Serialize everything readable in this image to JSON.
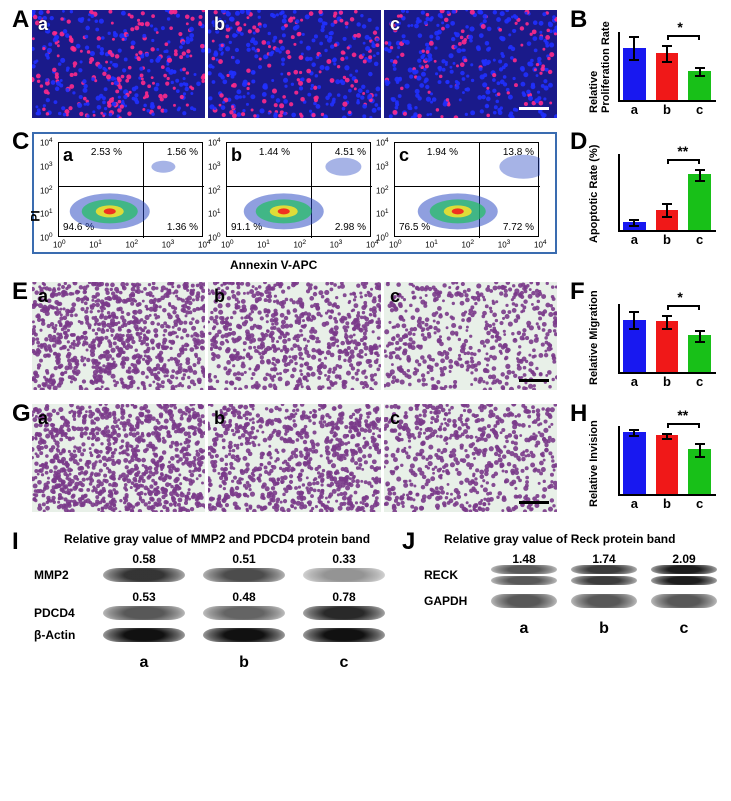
{
  "panels": {
    "A": {
      "label": "A",
      "subs": [
        "a",
        "b",
        "c"
      ]
    },
    "B": {
      "label": "B",
      "chart": {
        "type": "bar",
        "ylabel": "Relative Proliferation Rate",
        "ylim": [
          0,
          1.3
        ],
        "ytick_step": 0.3,
        "categories": [
          "a",
          "b",
          "c"
        ],
        "values": [
          1.0,
          0.9,
          0.55
        ],
        "errors": [
          0.22,
          0.15,
          0.08
        ],
        "bar_colors": [
          "#1818f0",
          "#f01818",
          "#18c018"
        ],
        "sig": {
          "from": 1,
          "to": 2,
          "label": "*"
        }
      }
    },
    "C": {
      "label": "C",
      "xaxis": "Annexin V-APC",
      "yaxis": "PI",
      "plots": [
        {
          "sub": "a",
          "q1": "2.53 %",
          "q2": "1.56 %",
          "q3": "94.6 %",
          "q4": "1.36 %"
        },
        {
          "sub": "b",
          "q1": "1.44 %",
          "q2": "4.51 %",
          "q3": "91.1 %",
          "q4": "2.98 %"
        },
        {
          "sub": "c",
          "q1": "1.94 %",
          "q2": "13.8 %",
          "q3": "76.5 %",
          "q4": "7.72 %"
        }
      ]
    },
    "D": {
      "label": "D",
      "chart": {
        "type": "bar",
        "ylabel": "Apoptotic Rate (%)",
        "ylim": [
          0,
          30
        ],
        "ytick_step": 5,
        "categories": [
          "a",
          "b",
          "c"
        ],
        "values": [
          3,
          8,
          22
        ],
        "errors": [
          1.2,
          2.5,
          2.2
        ],
        "bar_colors": [
          "#1818f0",
          "#f01818",
          "#18c018"
        ],
        "sig": {
          "from": 1,
          "to": 2,
          "label": "**"
        }
      }
    },
    "E": {
      "label": "E",
      "subs": [
        "a",
        "b",
        "c"
      ]
    },
    "F": {
      "label": "F",
      "chart": {
        "type": "bar",
        "ylabel": "Relative Migration",
        "ylim": [
          0,
          1.3
        ],
        "ytick_step": 0.3,
        "categories": [
          "a",
          "b",
          "c"
        ],
        "values": [
          1.0,
          0.97,
          0.7
        ],
        "errors": [
          0.16,
          0.12,
          0.1
        ],
        "bar_colors": [
          "#1818f0",
          "#f01818",
          "#18c018"
        ],
        "sig": {
          "from": 1,
          "to": 2,
          "label": "*"
        }
      }
    },
    "G": {
      "label": "G",
      "subs": [
        "a",
        "b",
        "c"
      ]
    },
    "H": {
      "label": "H",
      "chart": {
        "type": "bar",
        "ylabel": "Relative Invision",
        "ylim": [
          0,
          1.1
        ],
        "ytick_step": 0.2,
        "categories": [
          "a",
          "b",
          "c"
        ],
        "values": [
          1.0,
          0.95,
          0.72
        ],
        "errors": [
          0.05,
          0.04,
          0.1
        ],
        "bar_colors": [
          "#1818f0",
          "#f01818",
          "#18c018"
        ],
        "sig": {
          "from": 1,
          "to": 2,
          "label": "**"
        }
      }
    },
    "I": {
      "label": "I",
      "title": "Relative gray value of MMP2 and PDCD4 protein band",
      "columns": [
        "a",
        "b",
        "c"
      ],
      "rows": [
        {
          "name": "MMP2",
          "values": [
            "0.58",
            "0.51",
            "0.33"
          ],
          "intensities": [
            0.85,
            0.75,
            0.45
          ]
        },
        {
          "name": "PDCD4",
          "values": [
            "0.53",
            "0.48",
            "0.78"
          ],
          "intensities": [
            0.7,
            0.65,
            0.9
          ]
        },
        {
          "name": "β-Actin",
          "values": [
            "",
            "",
            ""
          ],
          "intensities": [
            1,
            1,
            1
          ]
        }
      ]
    },
    "J": {
      "label": "J",
      "title": "Relative gray value of Reck protein band",
      "columns": [
        "a",
        "b",
        "c"
      ],
      "rows": [
        {
          "name": "RECK",
          "values": [
            "1.48",
            "1.74",
            "2.09"
          ],
          "intensities": [
            0.7,
            0.82,
            0.95
          ],
          "double": true
        },
        {
          "name": "GAPDH",
          "values": [
            "",
            "",
            ""
          ],
          "intensities": [
            0.7,
            0.7,
            0.7
          ]
        }
      ]
    }
  }
}
